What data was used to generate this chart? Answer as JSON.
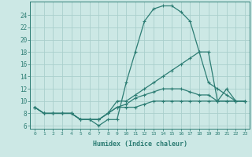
{
  "xlabel": "Humidex (Indice chaleur)",
  "bg_color": "#cce8e5",
  "line_color": "#2d7d74",
  "grid_color": "#aacfcc",
  "xlim": [
    -0.5,
    23.5
  ],
  "ylim": [
    5.5,
    26.2
  ],
  "xticks": [
    0,
    1,
    2,
    3,
    4,
    5,
    6,
    7,
    8,
    9,
    10,
    11,
    12,
    13,
    14,
    15,
    16,
    17,
    18,
    19,
    20,
    21,
    22,
    23
  ],
  "yticks": [
    6,
    8,
    10,
    12,
    14,
    16,
    18,
    20,
    22,
    24
  ],
  "series": [
    [
      9,
      8,
      8,
      8,
      8,
      7,
      7,
      6,
      7,
      7,
      13,
      18,
      23,
      25,
      25.5,
      25.5,
      24.5,
      23,
      18,
      18,
      10,
      12,
      10,
      10
    ],
    [
      9,
      8,
      8,
      8,
      8,
      7,
      7,
      7,
      8,
      10,
      10,
      11,
      12,
      13,
      14,
      15,
      16,
      17,
      18,
      13,
      12,
      11,
      10,
      10
    ],
    [
      9,
      8,
      8,
      8,
      8,
      7,
      7,
      7,
      8,
      9,
      9.5,
      10.5,
      11,
      11.5,
      12,
      12,
      12,
      11.5,
      11,
      11,
      10,
      10,
      10,
      10
    ],
    [
      9,
      8,
      8,
      8,
      8,
      7,
      7,
      7,
      8,
      9,
      9,
      9,
      9.5,
      10,
      10,
      10,
      10,
      10,
      10,
      10,
      10,
      10,
      10,
      10
    ]
  ]
}
